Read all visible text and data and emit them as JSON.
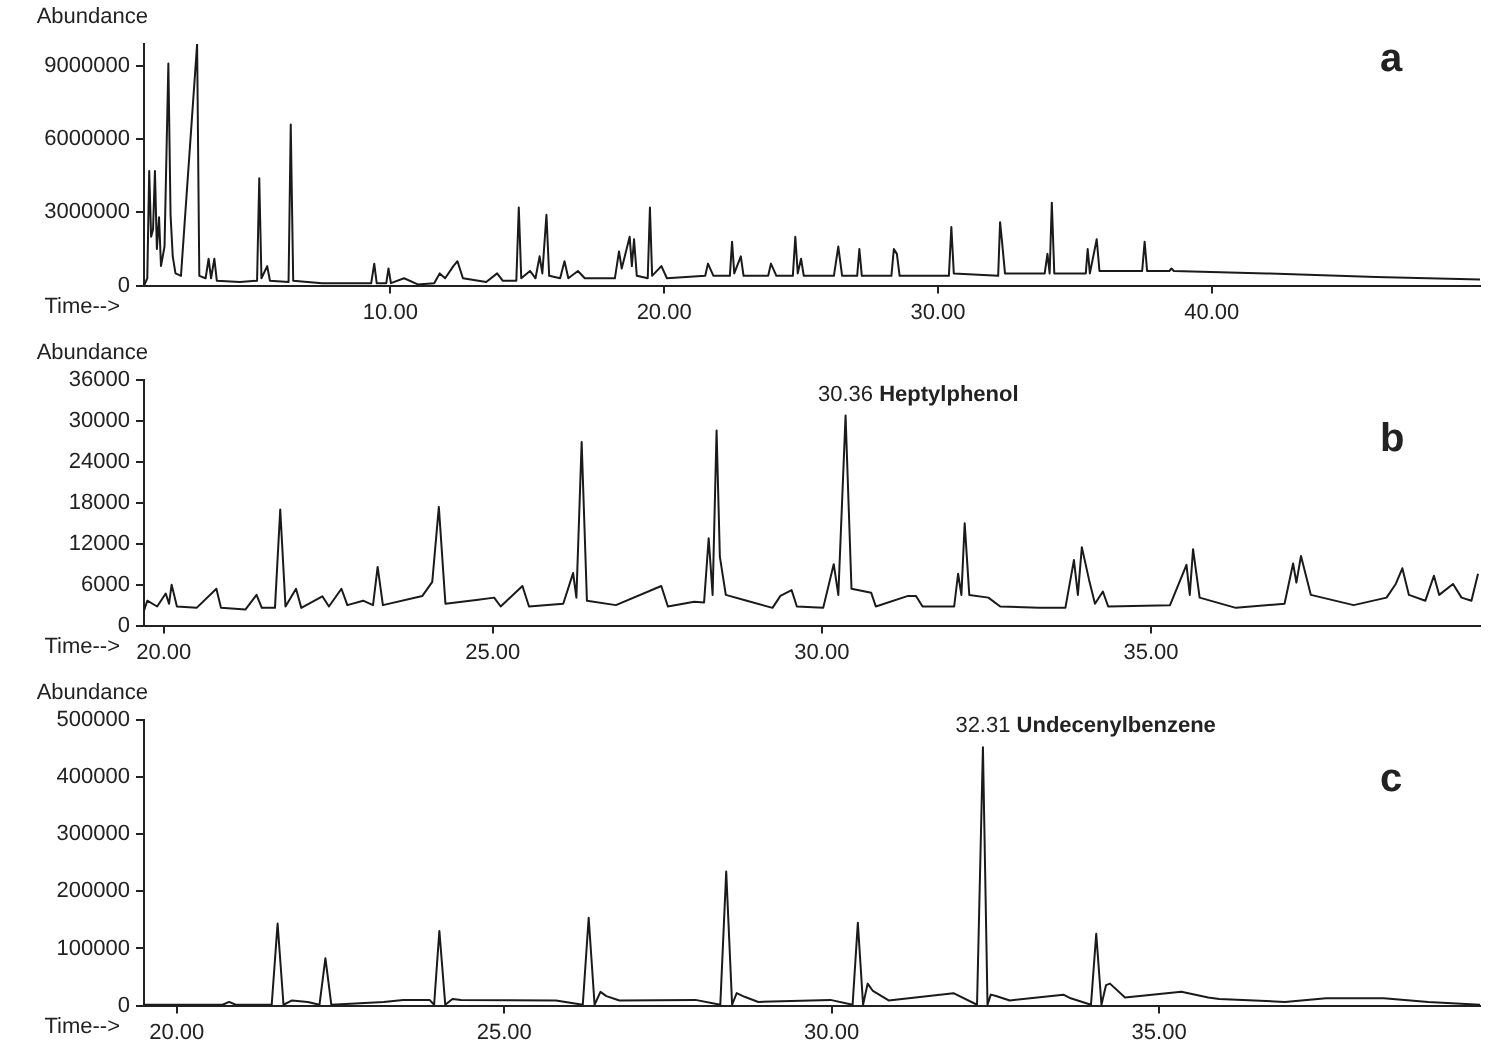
{
  "chart_data": [
    {
      "type": "line",
      "xlabel": "Time-->",
      "ylabel": "Abundance",
      "annotations": [
        "a"
      ],
      "xlim": [
        1.0,
        49.8
      ],
      "ylim": [
        0,
        9900000
      ],
      "xticks": [
        {
          "value": 10,
          "label": "10.00"
        },
        {
          "value": 20,
          "label": "20.00"
        },
        {
          "value": 30,
          "label": "30.00"
        },
        {
          "value": 40,
          "label": "40.00"
        }
      ],
      "yticks": [
        0,
        3000000,
        6000000,
        9000000
      ],
      "grid": false,
      "x": [
        1.0,
        1.12,
        1.19,
        1.26,
        1.33,
        1.4,
        1.47,
        1.55,
        1.62,
        1.75,
        1.89,
        1.97,
        2.05,
        2.15,
        2.35,
        2.94,
        3.02,
        3.25,
        3.36,
        3.45,
        3.57,
        3.66,
        4.5,
        5.13,
        5.21,
        5.29,
        5.5,
        5.6,
        6.28,
        6.36,
        6.45,
        7.5,
        9.3,
        9.41,
        9.5,
        9.85,
        9.93,
        10.02,
        10.5,
        11.0,
        11.6,
        11.8,
        12.0,
        12.3,
        12.45,
        12.65,
        13.5,
        13.9,
        14.1,
        14.6,
        14.69,
        14.78,
        15.1,
        15.3,
        15.45,
        15.55,
        15.7,
        15.8,
        16.2,
        16.36,
        16.5,
        16.85,
        17.1,
        18.2,
        18.35,
        18.45,
        18.74,
        18.82,
        18.9,
        19.0,
        19.4,
        19.48,
        19.56,
        19.9,
        20.1,
        21.5,
        21.6,
        21.8,
        22.4,
        22.48,
        22.56,
        22.8,
        22.9,
        23.8,
        23.9,
        24.1,
        24.7,
        24.79,
        24.88,
        25.0,
        25.1,
        26.2,
        26.36,
        26.5,
        27.05,
        27.13,
        27.22,
        28.3,
        28.39,
        28.5,
        28.6,
        30.4,
        30.49,
        30.58,
        32.2,
        32.27,
        32.35,
        32.45,
        33.9,
        34.0,
        34.08,
        34.16,
        34.25,
        35.4,
        35.47,
        35.55,
        35.8,
        35.9,
        37.46,
        37.55,
        37.64,
        38.45,
        38.53,
        38.62,
        42.0,
        46.0,
        49.8
      ],
      "series": [
        {
          "color": "#1a1a1a",
          "values": [
            0,
            300000,
            4700000,
            2000000,
            2300000,
            4700000,
            1500000,
            2800000,
            800000,
            1600000,
            9100000,
            2900000,
            1200000,
            500000,
            400000,
            9900000,
            400000,
            300000,
            1100000,
            300000,
            1100000,
            200000,
            150000,
            200000,
            4400000,
            300000,
            800000,
            200000,
            150000,
            6600000,
            200000,
            100000,
            100000,
            900000,
            100000,
            100000,
            700000,
            100000,
            300000,
            50000,
            100000,
            500000,
            300000,
            800000,
            1000000,
            300000,
            150000,
            500000,
            200000,
            200000,
            3200000,
            300000,
            600000,
            300000,
            1200000,
            500000,
            2900000,
            400000,
            300000,
            1000000,
            300000,
            600000,
            300000,
            300000,
            1400000,
            700000,
            2000000,
            800000,
            1900000,
            400000,
            300000,
            3200000,
            400000,
            800000,
            300000,
            400000,
            900000,
            400000,
            400000,
            1800000,
            500000,
            1200000,
            400000,
            400000,
            900000,
            400000,
            400000,
            2000000,
            500000,
            1100000,
            400000,
            400000,
            1600000,
            400000,
            400000,
            1500000,
            400000,
            400000,
            1500000,
            1300000,
            400000,
            400000,
            2400000,
            500000,
            400000,
            2600000,
            1700000,
            500000,
            500000,
            1300000,
            500000,
            3400000,
            500000,
            500000,
            1500000,
            500000,
            1900000,
            600000,
            600000,
            1800000,
            600000,
            600000,
            700000,
            600000,
            500000,
            350000,
            250000
          ]
        }
      ]
    },
    {
      "type": "line",
      "xlabel": "Time-->",
      "ylabel": "Abundance",
      "annotations": [
        "b",
        {
          "text": "30.36 Heptylphenol",
          "x": 30.36,
          "y": 30800
        }
      ],
      "xlim": [
        19.7,
        40.0
      ],
      "ylim": [
        0,
        36000
      ],
      "xticks": [
        {
          "value": 20,
          "label": "20.00"
        },
        {
          "value": 25,
          "label": "25.00"
        },
        {
          "value": 30,
          "label": "30.00"
        },
        {
          "value": 35,
          "label": "35.00"
        }
      ],
      "yticks": [
        0,
        6000,
        12000,
        18000,
        24000,
        30000,
        36000
      ],
      "grid": false,
      "x": [
        19.7,
        19.75,
        19.9,
        20.03,
        20.08,
        20.12,
        20.2,
        20.5,
        20.8,
        20.87,
        21.24,
        21.41,
        21.49,
        21.69,
        21.77,
        21.85,
        22.01,
        22.09,
        22.41,
        22.51,
        22.7,
        22.79,
        23.03,
        23.18,
        23.25,
        23.33,
        23.93,
        24.08,
        24.18,
        24.28,
        24.78,
        25.02,
        25.12,
        25.45,
        25.55,
        26.07,
        26.22,
        26.27,
        26.35,
        26.43,
        26.87,
        27.56,
        27.66,
        28.06,
        28.21,
        28.28,
        28.34,
        28.4,
        28.45,
        28.54,
        28.86,
        29.25,
        29.37,
        29.54,
        29.62,
        30.02,
        30.18,
        30.25,
        30.36,
        30.45,
        30.75,
        30.82,
        31.31,
        31.43,
        31.53,
        32.01,
        32.07,
        32.12,
        32.17,
        32.24,
        32.53,
        32.71,
        33.3,
        33.7,
        33.83,
        33.89,
        33.95,
        34.06,
        34.15,
        34.27,
        34.35,
        35.29,
        35.54,
        35.59,
        35.64,
        35.74,
        36.29,
        37.03,
        37.16,
        37.21,
        37.28,
        37.43,
        38.08,
        38.58,
        38.72,
        38.82,
        38.92,
        39.17,
        39.3,
        39.38,
        39.59,
        39.72,
        39.87,
        39.97
      ],
      "series": [
        {
          "color": "#1a1a1a",
          "values": [
            2200,
            3650,
            2800,
            4700,
            3200,
            6000,
            2800,
            2600,
            5400,
            2600,
            2350,
            4500,
            2600,
            2600,
            17000,
            2800,
            5400,
            2600,
            4300,
            2800,
            5400,
            3000,
            3650,
            3000,
            8600,
            3000,
            4350,
            6400,
            17400,
            3200,
            3800,
            4100,
            2800,
            5800,
            2800,
            3200,
            7700,
            4100,
            26900,
            3650,
            3000,
            5800,
            2800,
            3500,
            3400,
            12800,
            4500,
            28600,
            10100,
            4500,
            3650,
            2600,
            4350,
            5200,
            2800,
            2600,
            9000,
            4500,
            30800,
            5400,
            4800,
            2800,
            4350,
            4350,
            2800,
            2800,
            7600,
            4500,
            15000,
            4500,
            4100,
            2800,
            2600,
            2600,
            9600,
            4500,
            11500,
            6700,
            3200,
            5000,
            2800,
            3000,
            8900,
            4500,
            11200,
            4100,
            2600,
            3200,
            9100,
            6300,
            10200,
            4500,
            3000,
            4100,
            6100,
            8400,
            4500,
            3650,
            7300,
            4500,
            6100,
            4100,
            3650,
            7600
          ]
        }
      ]
    },
    {
      "type": "line",
      "xlabel": "Time-->",
      "ylabel": "Abundance",
      "annotations": [
        "c",
        {
          "text": "32.31 Undecenylbenzene",
          "x": 32.31,
          "y": 452500
        }
      ],
      "xlim": [
        19.5,
        39.9
      ],
      "ylim": [
        0,
        500000
      ],
      "xticks": [
        {
          "value": 20,
          "label": "20.00"
        },
        {
          "value": 25,
          "label": "25.00"
        },
        {
          "value": 30,
          "label": "30.00"
        },
        {
          "value": 35,
          "label": "35.00"
        }
      ],
      "yticks": [
        0,
        100000,
        200000,
        300000,
        400000,
        500000
      ],
      "grid": false,
      "x": [
        19.5,
        20.7,
        20.8,
        20.9,
        21.45,
        21.54,
        21.63,
        21.76,
        22.0,
        22.18,
        22.27,
        22.36,
        23.16,
        23.46,
        23.86,
        23.93,
        24.01,
        24.1,
        24.21,
        24.34,
        25.79,
        26.2,
        26.29,
        26.38,
        26.47,
        26.56,
        26.76,
        27.92,
        28.3,
        28.39,
        28.48,
        28.55,
        28.67,
        28.88,
        29.98,
        30.32,
        30.4,
        30.48,
        30.55,
        30.63,
        30.87,
        31.86,
        32.22,
        32.31,
        32.38,
        32.43,
        32.51,
        32.72,
        33.54,
        33.65,
        33.96,
        34.04,
        34.12,
        34.19,
        34.25,
        34.48,
        35.34,
        35.75,
        35.92,
        36.92,
        37.55,
        38.43,
        39.11,
        39.9
      ],
      "series": [
        {
          "color": "#1a1a1a",
          "values": [
            1500,
            1500,
            6400,
            1500,
            1500,
            143600,
            1500,
            9000,
            6400,
            1500,
            83000,
            1500,
            6400,
            10000,
            10000,
            1500,
            130800,
            1500,
            11500,
            10000,
            9000,
            1500,
            153800,
            1500,
            24000,
            16600,
            9000,
            10000,
            1500,
            234600,
            1500,
            21800,
            15400,
            6400,
            10000,
            1500,
            144900,
            1500,
            38500,
            25600,
            9000,
            21800,
            1500,
            452500,
            1500,
            19200,
            16700,
            9000,
            19200,
            12800,
            1500,
            125600,
            1500,
            35900,
            38500,
            14100,
            24400,
            14100,
            11500,
            6400,
            12800,
            12800,
            6400,
            1500
          ]
        }
      ]
    }
  ]
}
